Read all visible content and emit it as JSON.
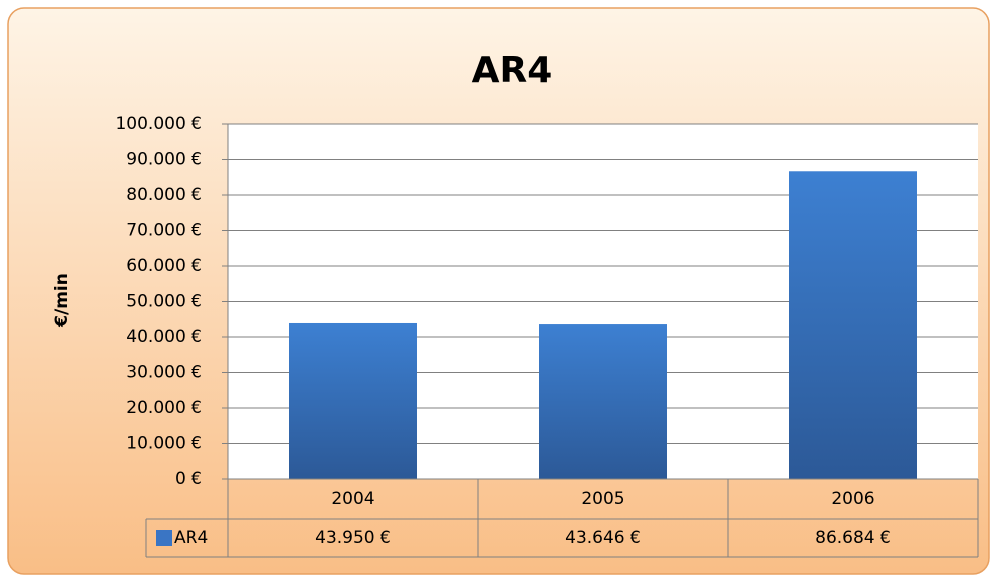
{
  "chart_data": {
    "type": "bar",
    "title": "AR4",
    "y_label": "€/min",
    "categories": [
      "2004",
      "2005",
      "2006"
    ],
    "series": [
      {
        "name": "AR4",
        "color": "#3a75c4",
        "values": [
          43950,
          43646,
          86684
        ],
        "value_labels": [
          "43.950 €",
          "43.646 €",
          "86.684 €"
        ]
      }
    ],
    "ylim": [
      0,
      100000
    ],
    "yticks": [
      {
        "value": 0,
        "label": "0 €"
      },
      {
        "value": 10000,
        "label": "10.000 €"
      },
      {
        "value": 20000,
        "label": "20.000 €"
      },
      {
        "value": 30000,
        "label": "30.000 €"
      },
      {
        "value": 40000,
        "label": "40.000 €"
      },
      {
        "value": 50000,
        "label": "50.000 €"
      },
      {
        "value": 60000,
        "label": "60.000 €"
      },
      {
        "value": 70000,
        "label": "70.000 €"
      },
      {
        "value": 80000,
        "label": "80.000 €"
      },
      {
        "value": 90000,
        "label": "90.000 €"
      },
      {
        "value": 100000,
        "label": "100.000 €"
      }
    ],
    "grid": true,
    "data_table": true
  }
}
